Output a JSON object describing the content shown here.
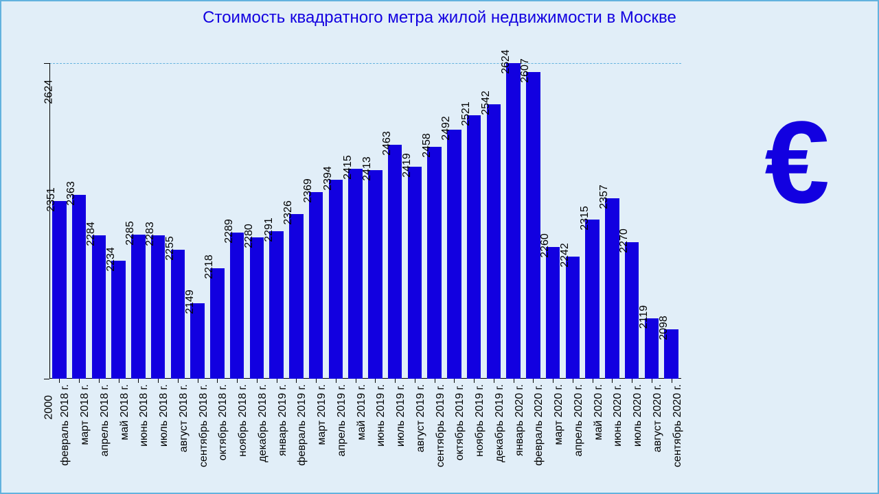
{
  "chart": {
    "type": "bar",
    "title": "Стоимость квадратного метра жилой недвижимости в Москве",
    "title_color": "#1200e0",
    "title_fontsize": 24,
    "background_color": "#e1eef8",
    "border_color": "#62b2de",
    "bar_color": "#1200e0",
    "grid_color": "#62b2de",
    "axis_color": "#000000",
    "text_color": "#000000",
    "euro_symbol": "€",
    "euro_color": "#1200e0",
    "y_min": 2000,
    "y_max": 2624,
    "y_ticks": [
      2000,
      2624
    ],
    "label_fontsize": 16,
    "bar_width_ratio": 0.72,
    "categories": [
      "февраль 2018 г.",
      "март 2018 г.",
      "апрель 2018 г.",
      "май 2018 г.",
      "июнь 2018 г.",
      "июль 2018 г.",
      "август 2018 г.",
      "сентябрь 2018 г.",
      "октябрь 2018 г.",
      "ноябрь 2018 г.",
      "декабрь 2018 г.",
      "январь 2019 г.",
      "февраль 2019 г.",
      "март 2019 г.",
      "апрель 2019 г.",
      "май 2019 г.",
      "июнь 2019 г.",
      "июль 2019 г.",
      "август 2019 г.",
      "сентябрь 2019 г.",
      "октябрь 2019 г.",
      "ноябрь 2019 г.",
      "декабрь 2019 г.",
      "январь 2020 г.",
      "февраль 2020 г.",
      "март 2020 г.",
      "апрель 2020 г.",
      "май 2020 г.",
      "июнь 2020 г.",
      "июль 2020 г.",
      "август 2020 г.",
      "сентябрь 2020 г."
    ],
    "values": [
      2351,
      2363,
      2284,
      2234,
      2285,
      2283,
      2255,
      2149,
      2218,
      2289,
      2280,
      2291,
      2326,
      2369,
      2394,
      2415,
      2413,
      2463,
      2419,
      2458,
      2492,
      2521,
      2542,
      2624,
      2607,
      2260,
      2242,
      2315,
      2357,
      2270,
      2119,
      2098
    ]
  }
}
